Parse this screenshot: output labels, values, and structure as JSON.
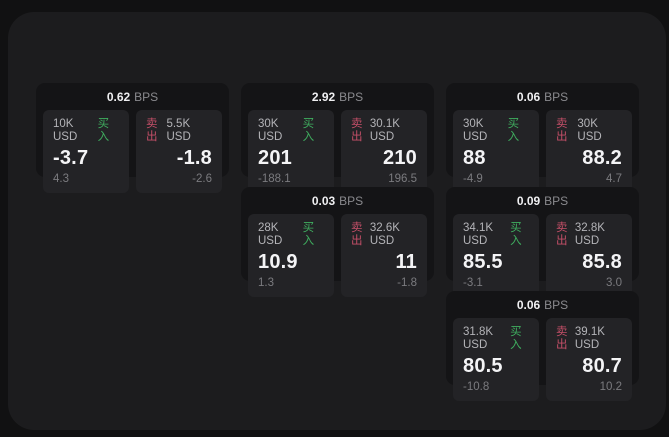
{
  "page": {
    "outer_bg": "#111112",
    "panel_bg": "#1c1c1e",
    "card_bg": "#141416",
    "tile_bg": "#232326",
    "buy_color": "#3fae5f",
    "sell_color": "#c44f68",
    "bps_unit_label": "BPS",
    "buy_label": "买入",
    "sell_label": "卖出"
  },
  "cards": [
    {
      "col": 1,
      "row": 1,
      "bps": "0.62",
      "buy": {
        "amount": "10K USD",
        "price": "-3.7",
        "delta": "4.3"
      },
      "sell": {
        "amount": "5.5K USD",
        "price": "-1.8",
        "delta": "-2.6"
      }
    },
    {
      "col": 2,
      "row": 1,
      "bps": "2.92",
      "buy": {
        "amount": "30K USD",
        "price": "201",
        "delta": "-188.1"
      },
      "sell": {
        "amount": "30.1K USD",
        "price": "210",
        "delta": "196.5"
      }
    },
    {
      "col": 3,
      "row": 1,
      "bps": "0.06",
      "buy": {
        "amount": "30K USD",
        "price": "88",
        "delta": "-4.9"
      },
      "sell": {
        "amount": "30K USD",
        "price": "88.2",
        "delta": "4.7"
      }
    },
    {
      "col": 2,
      "row": 2,
      "bps": "0.03",
      "buy": {
        "amount": "28K USD",
        "price": "10.9",
        "delta": "1.3"
      },
      "sell": {
        "amount": "32.6K USD",
        "price": "11",
        "delta": "-1.8"
      }
    },
    {
      "col": 3,
      "row": 2,
      "bps": "0.09",
      "buy": {
        "amount": "34.1K USD",
        "price": "85.5",
        "delta": "-3.1"
      },
      "sell": {
        "amount": "32.8K USD",
        "price": "85.8",
        "delta": "3.0"
      }
    },
    {
      "col": 3,
      "row": 3,
      "bps": "0.06",
      "buy": {
        "amount": "31.8K USD",
        "price": "80.5",
        "delta": "-10.8"
      },
      "sell": {
        "amount": "39.1K USD",
        "price": "80.7",
        "delta": "10.2"
      }
    }
  ]
}
